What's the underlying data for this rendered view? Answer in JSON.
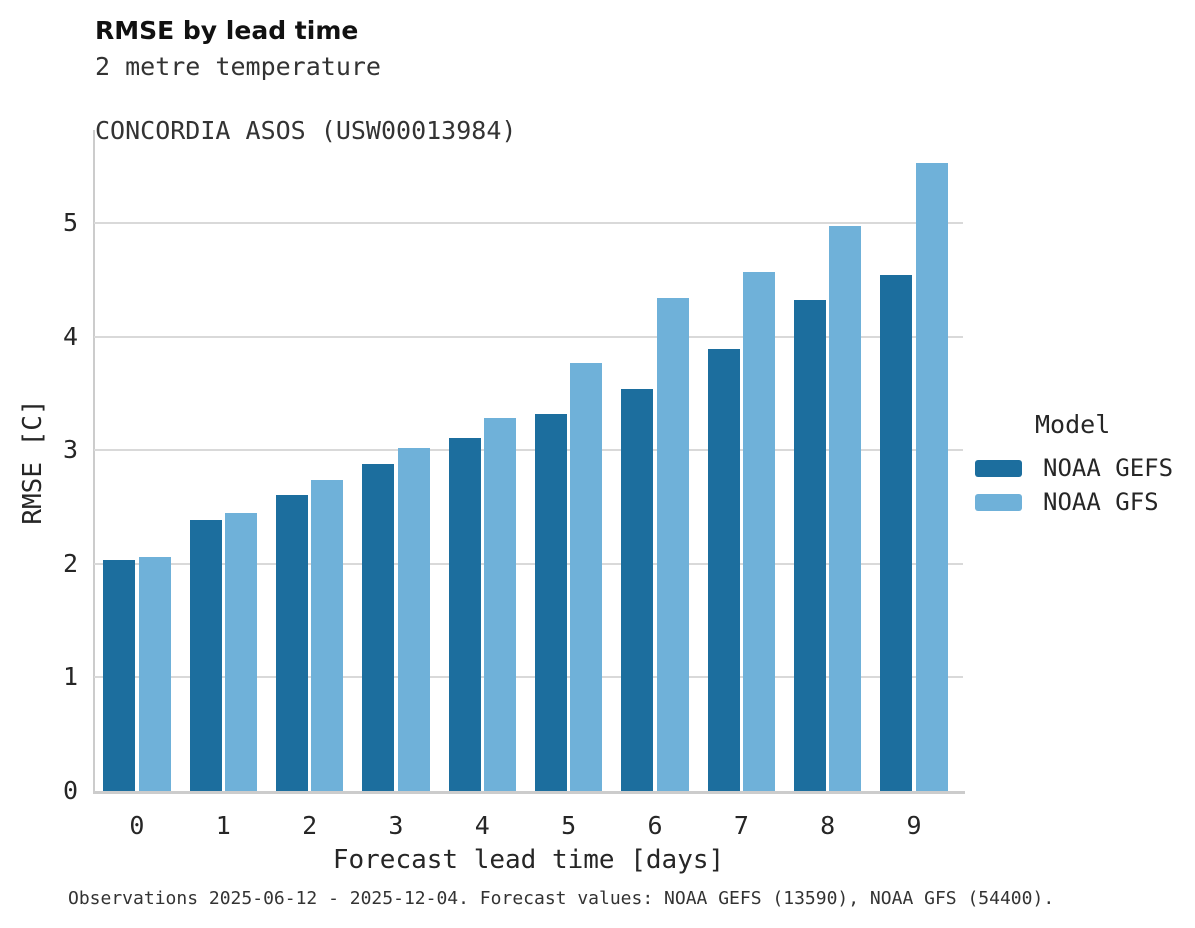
{
  "header": {
    "title": "RMSE by lead time",
    "subtitle_line1": "2 metre temperature",
    "subtitle_line2": "CONCORDIA ASOS (USW00013984)"
  },
  "chart_data": {
    "type": "bar",
    "title": "RMSE by lead time",
    "subtitle": [
      "2 metre temperature",
      "CONCORDIA ASOS (USW00013984)"
    ],
    "xlabel": "Forecast lead time [days]",
    "ylabel": "RMSE [C]",
    "categories": [
      "0",
      "1",
      "2",
      "3",
      "4",
      "5",
      "6",
      "7",
      "8",
      "9"
    ],
    "series": [
      {
        "name": "NOAA GEFS",
        "color": "#1c6e9e",
        "values": [
          2.03,
          2.39,
          2.61,
          2.88,
          3.11,
          3.32,
          3.54,
          3.89,
          4.32,
          4.54
        ]
      },
      {
        "name": "NOAA GFS",
        "color": "#6fb1d9",
        "values": [
          2.06,
          2.45,
          2.74,
          3.02,
          3.28,
          3.77,
          4.34,
          4.57,
          4.97,
          5.53
        ]
      }
    ],
    "ylim": [
      0,
      5.82
    ],
    "yticks": [
      0,
      1,
      2,
      3,
      4,
      5
    ],
    "grid": "horizontal",
    "legend_title": "Model",
    "legend_position": "right"
  },
  "legend": {
    "title": "Model",
    "items": [
      {
        "label": "NOAA GEFS",
        "color": "#1c6e9e"
      },
      {
        "label": "NOAA GFS",
        "color": "#6fb1d9"
      }
    ]
  },
  "caption": "Observations 2025-06-12 - 2025-12-04. Forecast values: NOAA GEFS (13590), NOAA GFS (54400)."
}
